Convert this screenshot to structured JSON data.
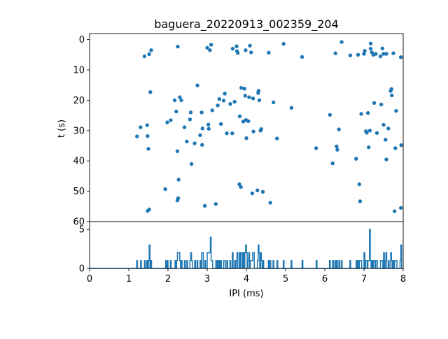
{
  "chart_data": [
    {
      "type": "scatter",
      "title": "baguera_20220913_002359_204",
      "xlabel": "",
      "ylabel": "t (s)",
      "xlim": [
        0,
        8
      ],
      "ylim": [
        60,
        -2
      ],
      "y_inverted": true,
      "yticks": [
        0,
        10,
        20,
        30,
        40,
        50,
        60
      ],
      "color": "#1f77b4",
      "points": [
        [
          1.4,
          5.5
        ],
        [
          1.52,
          4.8
        ],
        [
          1.57,
          3.5
        ],
        [
          1.55,
          17.3
        ],
        [
          1.21,
          31.9
        ],
        [
          1.3,
          28.9
        ],
        [
          1.47,
          28.2
        ],
        [
          1.48,
          31.8
        ],
        [
          1.5,
          36.0
        ],
        [
          1.48,
          56.5
        ],
        [
          1.52,
          56.0
        ],
        [
          1.93,
          49.3
        ],
        [
          1.98,
          27.3
        ],
        [
          2.07,
          26.6
        ],
        [
          2.17,
          20.0
        ],
        [
          2.21,
          23.7
        ],
        [
          2.25,
          2.3
        ],
        [
          2.24,
          36.8
        ],
        [
          2.27,
          46.2
        ],
        [
          2.24,
          53.0
        ],
        [
          2.26,
          52.3
        ],
        [
          2.3,
          19.0
        ],
        [
          2.34,
          20.0
        ],
        [
          2.42,
          28.9
        ],
        [
          2.48,
          33.6
        ],
        [
          2.56,
          26.3
        ],
        [
          2.58,
          24.0
        ],
        [
          2.6,
          41.0
        ],
        [
          2.68,
          34.2
        ],
        [
          2.75,
          15.1
        ],
        [
          2.82,
          31.5
        ],
        [
          2.86,
          24.0
        ],
        [
          2.87,
          34.7
        ],
        [
          2.88,
          29.3
        ],
        [
          2.94,
          54.8
        ],
        [
          3.0,
          2.7
        ],
        [
          3.03,
          28.0
        ],
        [
          3.04,
          29.4
        ],
        [
          3.07,
          3.5
        ],
        [
          3.1,
          1.7
        ],
        [
          3.13,
          23.3
        ],
        [
          3.22,
          54.2
        ],
        [
          3.27,
          21.7
        ],
        [
          3.31,
          19.6
        ],
        [
          3.35,
          27.8
        ],
        [
          3.42,
          20.1
        ],
        [
          3.45,
          17.8
        ],
        [
          3.5,
          30.9
        ],
        [
          3.59,
          21.2
        ],
        [
          3.65,
          3.0
        ],
        [
          3.64,
          30.9
        ],
        [
          3.7,
          20.5
        ],
        [
          3.75,
          2.2
        ],
        [
          3.76,
          3.8
        ],
        [
          3.78,
          4.4
        ],
        [
          3.82,
          47.7
        ],
        [
          3.83,
          25.3
        ],
        [
          3.86,
          48.6
        ],
        [
          3.87,
          15.9
        ],
        [
          3.92,
          27.0
        ],
        [
          3.95,
          16.2
        ],
        [
          3.97,
          18.5
        ],
        [
          3.98,
          3.5
        ],
        [
          3.99,
          26.5
        ],
        [
          4.0,
          32.5
        ],
        [
          4.05,
          26.9
        ],
        [
          4.07,
          19.0
        ],
        [
          4.09,
          2.0
        ],
        [
          4.12,
          4.2
        ],
        [
          4.15,
          50.7
        ],
        [
          4.17,
          19.4
        ],
        [
          4.18,
          30.3
        ],
        [
          4.28,
          49.7
        ],
        [
          4.3,
          17.6
        ],
        [
          4.31,
          16.9
        ],
        [
          4.33,
          20.0
        ],
        [
          4.36,
          30.0
        ],
        [
          4.38,
          29.5
        ],
        [
          4.42,
          50.2
        ],
        [
          4.57,
          4.3
        ],
        [
          4.61,
          53.8
        ],
        [
          4.69,
          20.7
        ],
        [
          4.78,
          32.6
        ],
        [
          4.95,
          1.4
        ],
        [
          5.15,
          22.5
        ],
        [
          5.42,
          5.7
        ],
        [
          5.78,
          35.8
        ],
        [
          6.13,
          24.8
        ],
        [
          6.2,
          40.8
        ],
        [
          6.27,
          4.5
        ],
        [
          6.3,
          35.2
        ],
        [
          6.32,
          36.3
        ],
        [
          6.36,
          29.6
        ],
        [
          6.43,
          0.8
        ],
        [
          6.65,
          5.2
        ],
        [
          6.8,
          39.3
        ],
        [
          6.85,
          5.0
        ],
        [
          6.88,
          47.7
        ],
        [
          6.9,
          53.3
        ],
        [
          6.93,
          24.5
        ],
        [
          7.0,
          4.7
        ],
        [
          7.02,
          3.7
        ],
        [
          7.05,
          30.2
        ],
        [
          7.07,
          30.7
        ],
        [
          7.1,
          24.2
        ],
        [
          7.12,
          35.5
        ],
        [
          7.15,
          30.0
        ],
        [
          7.17,
          1.3
        ],
        [
          7.17,
          3.0
        ],
        [
          7.2,
          4.2
        ],
        [
          7.24,
          5.0
        ],
        [
          7.26,
          20.9
        ],
        [
          7.3,
          4.7
        ],
        [
          7.33,
          30.8
        ],
        [
          7.42,
          5.5
        ],
        [
          7.44,
          21.4
        ],
        [
          7.47,
          2.9
        ],
        [
          7.5,
          4.7
        ],
        [
          7.5,
          28.1
        ],
        [
          7.55,
          33.0
        ],
        [
          7.57,
          4.7
        ],
        [
          7.57,
          39.5
        ],
        [
          7.62,
          29.3
        ],
        [
          7.68,
          16.9
        ],
        [
          7.7,
          16.3
        ],
        [
          7.71,
          18.4
        ],
        [
          7.75,
          4.5
        ],
        [
          7.78,
          56.6
        ],
        [
          7.8,
          35.8
        ],
        [
          7.82,
          23.5
        ],
        [
          7.94,
          5.8
        ],
        [
          7.94,
          55.5
        ],
        [
          7.95,
          34.8
        ]
      ]
    },
    {
      "type": "line",
      "xlabel": "IPI (ms)",
      "ylabel": "",
      "xlim": [
        0,
        8
      ],
      "ylim": [
        0,
        6
      ],
      "xticks": [
        0,
        1,
        2,
        3,
        4,
        5,
        6,
        7,
        8
      ],
      "yticks": [
        0,
        5
      ],
      "color": "#1f77b4",
      "bin_width": 0.02,
      "counts_nonzero": [
        [
          1.2,
          1
        ],
        [
          1.3,
          1
        ],
        [
          1.4,
          1
        ],
        [
          1.46,
          1
        ],
        [
          1.5,
          1
        ],
        [
          1.52,
          3
        ],
        [
          1.56,
          1
        ],
        [
          1.94,
          1
        ],
        [
          1.98,
          1
        ],
        [
          2.06,
          1
        ],
        [
          2.18,
          1
        ],
        [
          2.22,
          1
        ],
        [
          2.24,
          2
        ],
        [
          2.26,
          2
        ],
        [
          2.28,
          2
        ],
        [
          2.3,
          1
        ],
        [
          2.34,
          1
        ],
        [
          2.42,
          1
        ],
        [
          2.48,
          1
        ],
        [
          2.56,
          1
        ],
        [
          2.58,
          2
        ],
        [
          2.6,
          1
        ],
        [
          2.68,
          1
        ],
        [
          2.74,
          1
        ],
        [
          2.82,
          1
        ],
        [
          2.86,
          2
        ],
        [
          2.88,
          2
        ],
        [
          2.94,
          1
        ],
        [
          3.0,
          2
        ],
        [
          3.02,
          2
        ],
        [
          3.04,
          2
        ],
        [
          3.06,
          2
        ],
        [
          3.08,
          4
        ],
        [
          3.1,
          1
        ],
        [
          3.12,
          1
        ],
        [
          3.22,
          1
        ],
        [
          3.26,
          1
        ],
        [
          3.3,
          1
        ],
        [
          3.34,
          1
        ],
        [
          3.42,
          1
        ],
        [
          3.44,
          1
        ],
        [
          3.5,
          1
        ],
        [
          3.58,
          1
        ],
        [
          3.64,
          2
        ],
        [
          3.7,
          1
        ],
        [
          3.74,
          1
        ],
        [
          3.76,
          2
        ],
        [
          3.82,
          2
        ],
        [
          3.86,
          2
        ],
        [
          3.88,
          2
        ],
        [
          3.92,
          2
        ],
        [
          3.96,
          2
        ],
        [
          3.98,
          3
        ],
        [
          4.0,
          2
        ],
        [
          4.04,
          1
        ],
        [
          4.06,
          2
        ],
        [
          4.1,
          1
        ],
        [
          4.12,
          1
        ],
        [
          4.14,
          1
        ],
        [
          4.16,
          2
        ],
        [
          4.18,
          2
        ],
        [
          4.28,
          1
        ],
        [
          4.3,
          3
        ],
        [
          4.32,
          2
        ],
        [
          4.36,
          2
        ],
        [
          4.38,
          1
        ],
        [
          4.42,
          1
        ],
        [
          4.56,
          1
        ],
        [
          4.6,
          1
        ],
        [
          4.68,
          1
        ],
        [
          4.78,
          1
        ],
        [
          4.94,
          1
        ],
        [
          5.14,
          1
        ],
        [
          5.42,
          1
        ],
        [
          5.78,
          1
        ],
        [
          6.12,
          1
        ],
        [
          6.2,
          1
        ],
        [
          6.26,
          1
        ],
        [
          6.3,
          1
        ],
        [
          6.36,
          1
        ],
        [
          6.42,
          1
        ],
        [
          6.64,
          1
        ],
        [
          6.8,
          1
        ],
        [
          6.84,
          1
        ],
        [
          6.88,
          1
        ],
        [
          6.9,
          1
        ],
        [
          6.92,
          1
        ],
        [
          7.0,
          2
        ],
        [
          7.04,
          1
        ],
        [
          7.06,
          1
        ],
        [
          7.1,
          1
        ],
        [
          7.12,
          1
        ],
        [
          7.14,
          5
        ],
        [
          7.16,
          1
        ],
        [
          7.2,
          1
        ],
        [
          7.24,
          1
        ],
        [
          7.26,
          1
        ],
        [
          7.3,
          1
        ],
        [
          7.32,
          1
        ],
        [
          7.42,
          1
        ],
        [
          7.44,
          1
        ],
        [
          7.46,
          1
        ],
        [
          7.5,
          2
        ],
        [
          7.54,
          1
        ],
        [
          7.56,
          2
        ],
        [
          7.62,
          1
        ],
        [
          7.68,
          2
        ],
        [
          7.7,
          1
        ],
        [
          7.74,
          1
        ],
        [
          7.78,
          1
        ],
        [
          7.8,
          1
        ],
        [
          7.82,
          1
        ],
        [
          7.92,
          1
        ],
        [
          7.94,
          3
        ]
      ]
    }
  ]
}
